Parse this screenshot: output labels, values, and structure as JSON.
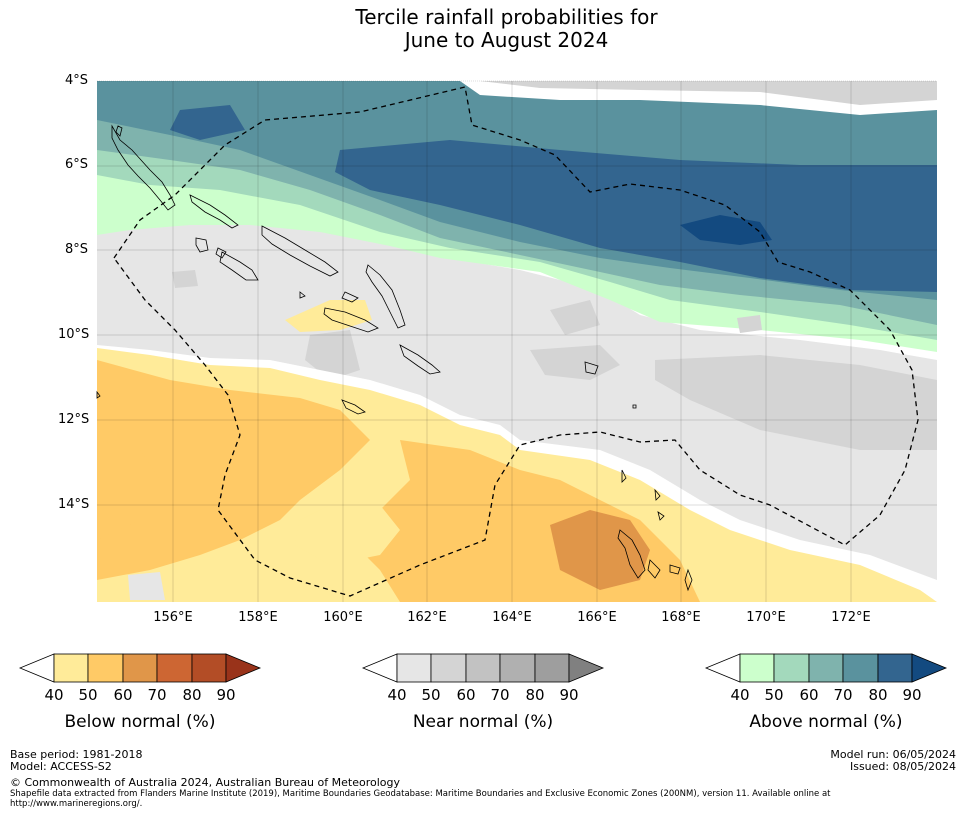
{
  "title": {
    "line1": "Tercile rainfall probabilities for",
    "line2": "June to August 2024"
  },
  "map": {
    "lat_labels": [
      "4°S",
      "6°S",
      "8°S",
      "10°S",
      "12°S",
      "14°S"
    ],
    "lon_labels": [
      "156°E",
      "158°E",
      "160°E",
      "162°E",
      "164°E",
      "166°E",
      "168°E",
      "170°E",
      "172°E"
    ],
    "lat_range": [
      -16,
      -4
    ],
    "lon_range": [
      154.2,
      174
    ]
  },
  "colorbars": [
    {
      "label": "Below normal (%)",
      "ticks": [
        "40",
        "50",
        "60",
        "70",
        "80",
        "90"
      ],
      "colors": [
        "#ffffff",
        "#ffeb99",
        "#ffca66",
        "#e09649",
        "#cd6633",
        "#b34d26",
        "#99331a"
      ]
    },
    {
      "label": "Near normal (%)",
      "ticks": [
        "40",
        "50",
        "60",
        "70",
        "80",
        "90"
      ],
      "colors": [
        "#ffffff",
        "#e6e6e6",
        "#d4d4d4",
        "#c2c2c2",
        "#b0b0b0",
        "#9e9e9e",
        "#808080"
      ]
    },
    {
      "label": "Above normal (%)",
      "ticks": [
        "40",
        "50",
        "60",
        "70",
        "80",
        "90"
      ],
      "colors": [
        "#ffffff",
        "#ccffcc",
        "#a3d9bc",
        "#7fb3ad",
        "#5a929e",
        "#33658f",
        "#134a80"
      ]
    }
  ],
  "footer": {
    "base_period": "Base period: 1981-2018",
    "model": "Model: ACCESS-S2",
    "copyright": "© Commonwealth of Australia 2024, Australian Bureau of Meteorology",
    "shapefile": "Shapefile data extracted from Flanders Marine Institute (2019), Maritime Boundaries Geodatabase: Maritime Boundaries and Exclusive Economic Zones (200NM), version 11. Available online at",
    "url": "http://www.marineregions.org/.",
    "model_run": "Model run: 06/05/2024",
    "issued": "Issued: 08/05/2024"
  }
}
